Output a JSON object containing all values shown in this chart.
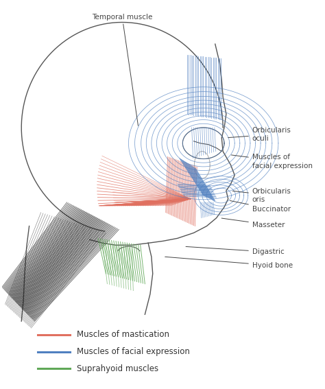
{
  "background_color": "#ffffff",
  "skull_color": "#555555",
  "red_color": "#e07060",
  "blue_color": "#5080c0",
  "green_color": "#60a858",
  "black_color": "#222222",
  "ann_color": "#444444",
  "ann_fs": 7.5,
  "legend_items": [
    {
      "label": "Muscles of mastication",
      "color": "#e07060"
    },
    {
      "label": "Muscles of facial expression",
      "color": "#5080c0"
    },
    {
      "label": "Suprahyoid muscles",
      "color": "#60a858"
    }
  ]
}
